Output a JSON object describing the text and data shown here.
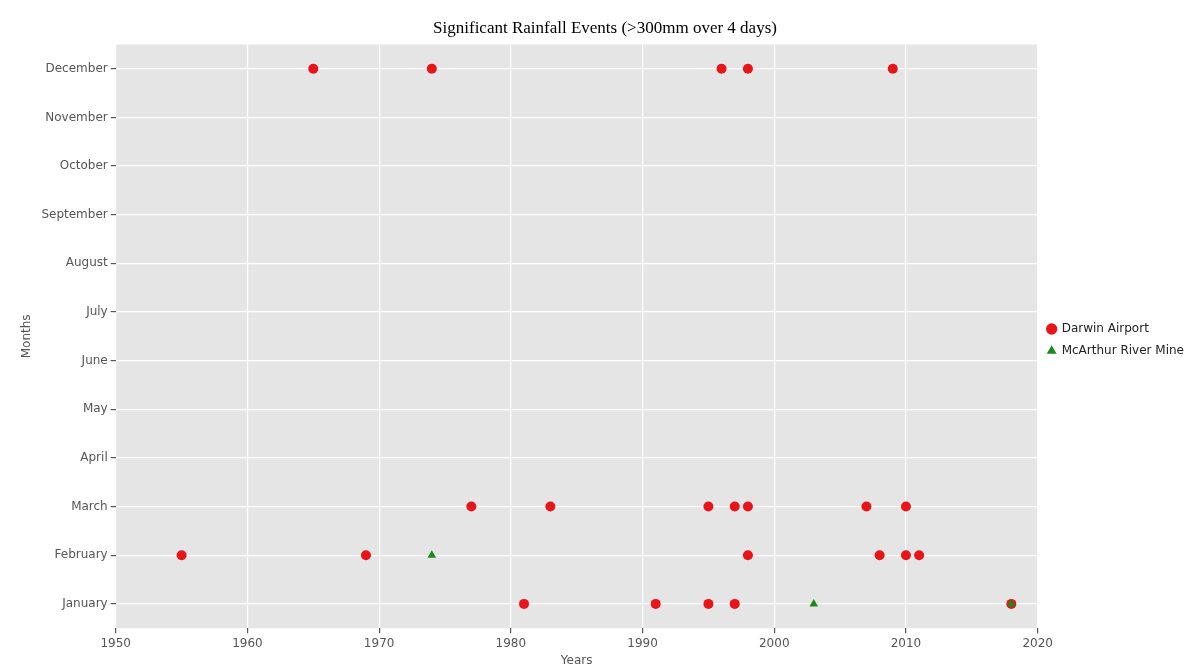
{
  "chart_data": {
    "type": "scatter",
    "orientation": "horizontal",
    "title": "Significant Rainfall Events (>300mm over 4 days)",
    "xlabel": "Years",
    "ylabel": "Months",
    "categories": [
      "December",
      "November",
      "October",
      "September",
      "August",
      "July",
      "June",
      "May",
      "April",
      "March",
      "February",
      "January"
    ],
    "series": [
      {
        "name": "Darwin Airport",
        "color": "#e8141a",
        "marker": "circle",
        "x": [
          "December",
          "December",
          "December",
          "December",
          "December",
          "March",
          "March",
          "March",
          "March",
          "March",
          "March",
          "March",
          "February",
          "February",
          "February",
          "February",
          "February",
          "February",
          "January",
          "January",
          "January",
          "January",
          "January"
        ],
        "values": [
          1965,
          1974,
          1996,
          1998,
          2009,
          1977,
          1983,
          1995,
          1997,
          1998,
          2007,
          2010,
          1955,
          1969,
          1998,
          2008,
          2010,
          2011,
          1981,
          1991,
          1995,
          1997,
          2018
        ]
      },
      {
        "name": "McArthur River Mine",
        "color": "#1a8a1a",
        "marker": "triangle",
        "x": [
          "February",
          "January",
          "January"
        ],
        "values": [
          1974,
          2003,
          2018
        ]
      }
    ],
    "xlim": [
      1950,
      2020
    ],
    "xticks": [
      1950,
      1960,
      1970,
      1980,
      1990,
      2000,
      2010,
      2020
    ],
    "grid": true,
    "legend": "right"
  }
}
